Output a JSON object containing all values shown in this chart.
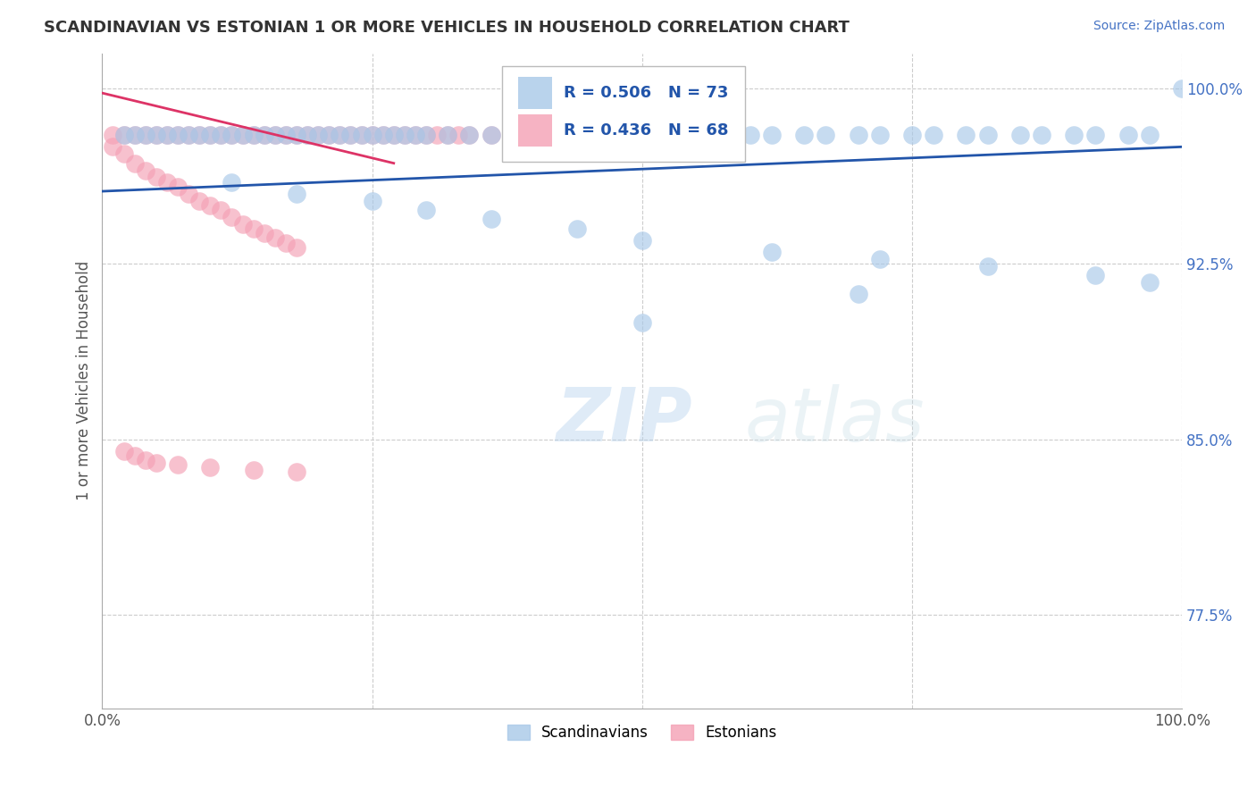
{
  "title": "SCANDINAVIAN VS ESTONIAN 1 OR MORE VEHICLES IN HOUSEHOLD CORRELATION CHART",
  "source": "Source: ZipAtlas.com",
  "ylabel": "1 or more Vehicles in Household",
  "xlim": [
    0.0,
    1.0
  ],
  "ylim": [
    0.735,
    1.015
  ],
  "yticks": [
    0.775,
    0.85,
    0.925,
    1.0
  ],
  "ytick_labels": [
    "77.5%",
    "85.0%",
    "92.5%",
    "100.0%"
  ],
  "xticks": [
    0.0,
    0.25,
    0.5,
    0.75,
    1.0
  ],
  "xtick_labels": [
    "0.0%",
    "",
    "",
    "",
    "100.0%"
  ],
  "watermark_zip": "ZIP",
  "watermark_atlas": "atlas",
  "legend_R_blue": "R = 0.506",
  "legend_N_blue": "N = 73",
  "legend_R_pink": "R = 0.436",
  "legend_N_pink": "N = 68",
  "legend_label_blue": "Scandinavians",
  "legend_label_pink": "Estonians",
  "title_color": "#333333",
  "source_color": "#4472c4",
  "blue_color": "#a8c8e8",
  "pink_color": "#f4a0b5",
  "blue_line_color": "#2255aa",
  "pink_line_color": "#dd3366",
  "grid_color": "#cccccc",
  "ytick_color": "#4472c4",
  "xtick_color": "#555555",
  "background_color": "#ffffff",
  "scan_top_x": [
    0.02,
    0.03,
    0.04,
    0.05,
    0.06,
    0.07,
    0.08,
    0.09,
    0.1,
    0.11,
    0.12,
    0.13,
    0.14,
    0.15,
    0.16,
    0.17,
    0.18,
    0.19,
    0.2,
    0.21,
    0.22,
    0.23,
    0.24,
    0.25,
    0.26,
    0.27,
    0.28,
    0.29,
    0.3,
    0.32,
    0.34,
    0.36,
    0.38,
    0.4,
    0.42,
    0.44,
    0.46,
    0.48,
    0.5,
    0.52,
    0.55,
    0.57,
    0.6,
    0.62,
    0.65,
    0.67,
    0.7,
    0.72,
    0.75,
    0.77,
    0.8,
    0.82,
    0.85,
    0.87,
    0.9,
    0.92,
    0.95,
    0.97,
    1.0
  ],
  "scan_top_y": [
    0.98,
    0.98,
    0.98,
    0.98,
    0.98,
    0.98,
    0.98,
    0.98,
    0.98,
    0.98,
    0.98,
    0.98,
    0.98,
    0.98,
    0.98,
    0.98,
    0.98,
    0.98,
    0.98,
    0.98,
    0.98,
    0.98,
    0.98,
    0.98,
    0.98,
    0.98,
    0.98,
    0.98,
    0.98,
    0.98,
    0.98,
    0.98,
    0.98,
    0.98,
    0.98,
    0.98,
    0.98,
    0.98,
    0.98,
    0.98,
    0.98,
    0.98,
    0.98,
    0.98,
    0.98,
    0.98,
    0.98,
    0.98,
    0.98,
    0.98,
    0.98,
    0.98,
    0.98,
    0.98,
    0.98,
    0.98,
    0.98,
    0.98,
    1.0
  ],
  "scan_low_x": [
    0.12,
    0.18,
    0.25,
    0.3,
    0.36,
    0.44,
    0.5,
    0.62,
    0.72,
    0.82,
    0.92,
    0.97,
    0.5,
    0.7
  ],
  "scan_low_y": [
    0.96,
    0.955,
    0.952,
    0.948,
    0.944,
    0.94,
    0.935,
    0.93,
    0.927,
    0.924,
    0.92,
    0.917,
    0.9,
    0.912
  ],
  "est_top_x": [
    0.01,
    0.02,
    0.03,
    0.04,
    0.05,
    0.06,
    0.07,
    0.08,
    0.09,
    0.1,
    0.11,
    0.12,
    0.13,
    0.14,
    0.15,
    0.16,
    0.17,
    0.18,
    0.19,
    0.2,
    0.21,
    0.22,
    0.23,
    0.24,
    0.25,
    0.26,
    0.27,
    0.28,
    0.29,
    0.3,
    0.31,
    0.32,
    0.33,
    0.34,
    0.36,
    0.38,
    0.4,
    0.42,
    0.44,
    0.46,
    0.48,
    0.5
  ],
  "est_top_y": [
    0.98,
    0.98,
    0.98,
    0.98,
    0.98,
    0.98,
    0.98,
    0.98,
    0.98,
    0.98,
    0.98,
    0.98,
    0.98,
    0.98,
    0.98,
    0.98,
    0.98,
    0.98,
    0.98,
    0.98,
    0.98,
    0.98,
    0.98,
    0.98,
    0.98,
    0.98,
    0.98,
    0.98,
    0.98,
    0.98,
    0.98,
    0.98,
    0.98,
    0.98,
    0.98,
    0.98,
    0.98,
    0.98,
    0.98,
    0.98,
    0.98,
    0.98
  ],
  "est_mid_x": [
    0.01,
    0.02,
    0.03,
    0.04,
    0.05,
    0.06,
    0.07,
    0.08,
    0.09,
    0.1,
    0.11,
    0.12,
    0.13,
    0.14,
    0.15,
    0.16,
    0.17,
    0.18
  ],
  "est_mid_y": [
    0.975,
    0.972,
    0.968,
    0.965,
    0.962,
    0.96,
    0.958,
    0.955,
    0.952,
    0.95,
    0.948,
    0.945,
    0.942,
    0.94,
    0.938,
    0.936,
    0.934,
    0.932
  ],
  "est_low_x": [
    0.02,
    0.03,
    0.04,
    0.05,
    0.07,
    0.1,
    0.14,
    0.18
  ],
  "est_low_y": [
    0.845,
    0.843,
    0.841,
    0.84,
    0.839,
    0.838,
    0.837,
    0.836
  ],
  "blue_trendline_x": [
    0.0,
    1.0
  ],
  "blue_trendline_y": [
    0.956,
    0.975
  ],
  "pink_trendline_x": [
    0.0,
    0.27
  ],
  "pink_trendline_y": [
    0.998,
    0.968
  ]
}
